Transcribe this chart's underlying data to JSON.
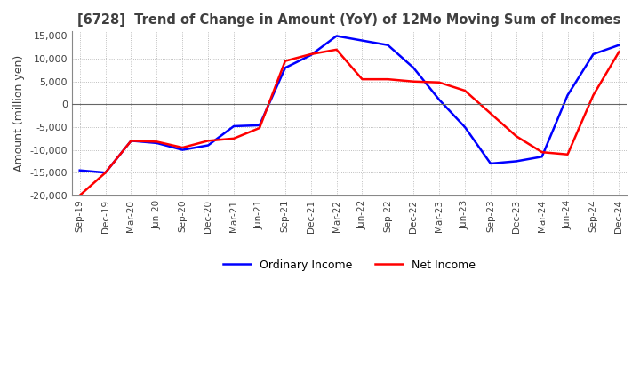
{
  "title": "[6728]  Trend of Change in Amount (YoY) of 12Mo Moving Sum of Incomes",
  "ylabel": "Amount (million yen)",
  "ylim": [
    -20000,
    16000
  ],
  "yticks": [
    -20000,
    -15000,
    -10000,
    -5000,
    0,
    5000,
    10000,
    15000
  ],
  "x_labels": [
    "Sep-19",
    "Dec-19",
    "Mar-20",
    "Jun-20",
    "Sep-20",
    "Dec-20",
    "Mar-21",
    "Jun-21",
    "Sep-21",
    "Dec-21",
    "Mar-22",
    "Jun-22",
    "Sep-22",
    "Dec-22",
    "Mar-23",
    "Jun-23",
    "Sep-23",
    "Dec-23",
    "Mar-24",
    "Jun-24",
    "Sep-24",
    "Dec-24"
  ],
  "ordinary_income": [
    -14500,
    -15000,
    -8000,
    -8500,
    -10000,
    -9000,
    -4800,
    -4600,
    8000,
    10800,
    15000,
    14000,
    13000,
    8000,
    1000,
    -5000,
    -13000,
    -12500,
    -11500,
    2000,
    11000,
    13000
  ],
  "net_income": [
    -20000,
    -15000,
    -8000,
    -8200,
    -9500,
    -8000,
    -7500,
    -5200,
    9500,
    11000,
    12000,
    5500,
    5500,
    5000,
    4800,
    3000,
    -2000,
    -7000,
    -10500,
    -11000,
    2000,
    11500
  ],
  "ordinary_color": "#0000ff",
  "net_color": "#ff0000",
  "grid_color": "#aaaaaa",
  "background_color": "#ffffff",
  "title_color": "#404040"
}
